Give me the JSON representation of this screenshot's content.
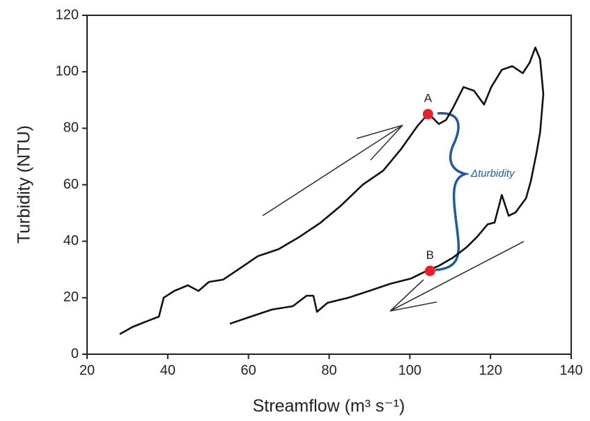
{
  "chart_data": {
    "type": "line",
    "xlabel": "Streamflow (m³ s⁻¹)",
    "ylabel": "Turbidity (NTU)",
    "xlim": [
      20,
      140
    ],
    "xticks": [
      20,
      40,
      60,
      80,
      100,
      120,
      140
    ],
    "ylim": [
      0,
      120
    ],
    "yticks": [
      0,
      20,
      40,
      60,
      80,
      100,
      120
    ],
    "series": [
      {
        "color": "#111111",
        "x": [
          28.1,
          31.2,
          34.7,
          37.8,
          39,
          41.6,
          45,
          47.6,
          50.2,
          53.7,
          58,
          62.3,
          67.5,
          72.7,
          77.9,
          83,
          88.3,
          93.4,
          97.7,
          102,
          104.6,
          107.2,
          109,
          110.7,
          113.3,
          115.9,
          118.4,
          120.2,
          122.8,
          125.4,
          128,
          129.7,
          131.1,
          132.3,
          133.1,
          132.3,
          131.4,
          130,
          128.8,
          126.2,
          124.5,
          122.8,
          121,
          119.3,
          116.7,
          114.1,
          110.7,
          107.2,
          104.6,
          100.3,
          95.1,
          89.9,
          84.8,
          79.6,
          77,
          76.1,
          74.4,
          71,
          65.8,
          60.6,
          55.4
        ],
        "values": [
          7.1,
          9.6,
          11.6,
          13.3,
          20,
          22.4,
          24.4,
          22.4,
          25.6,
          26.4,
          30.5,
          34.7,
          37.2,
          41.6,
          46.6,
          52.7,
          60,
          65,
          72.4,
          81,
          85.2,
          81.5,
          83,
          87.2,
          94.6,
          93.3,
          88.4,
          94.6,
          100.7,
          102,
          99.5,
          103.2,
          108.6,
          104.4,
          92.1,
          78.6,
          71.2,
          61.3,
          55.2,
          50.2,
          49,
          56.4,
          46.6,
          46,
          41.6,
          37.9,
          34.2,
          31.3,
          29.8,
          26.8,
          24.9,
          22.4,
          20,
          18.2,
          15,
          20.7,
          20.7,
          17,
          15.8,
          13.3,
          10.8
        ]
      }
    ],
    "points": [
      {
        "label": "A",
        "x": 104.5,
        "y": 85,
        "color": "#e8202a"
      },
      {
        "label": "B",
        "x": 105,
        "y": 29.5,
        "color": "#e8202a"
      }
    ],
    "annotation": "Δturbidity"
  }
}
